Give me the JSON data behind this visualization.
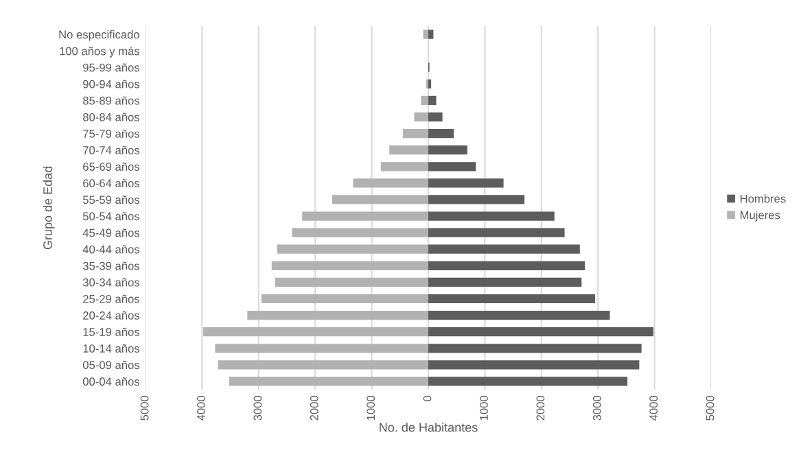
{
  "chart_data": {
    "type": "bar",
    "orientation": "horizontal",
    "stacked": true,
    "xlabel": "No. de Habitantes",
    "ylabel": "Grupo de Edad",
    "categories": [
      "No especificado",
      "100 años y más",
      "95-99 años",
      "90-94 años",
      "85-89 años",
      "80-84 años",
      "75-79 años",
      "70-74 años",
      "65-69 años",
      "60-64 años",
      "55-59 años",
      "50-54 años",
      "45-49 años",
      "40-44 años",
      "35-39 años",
      "30-34 años",
      "25-29 años",
      "20-24 años",
      "15-19 años",
      "10-14 años",
      "05-09 años",
      "00-04 años"
    ],
    "series": [
      {
        "name": "Hombres",
        "color": "#5d5d5d",
        "values": [
          90,
          0,
          20,
          50,
          140,
          250,
          450,
          690,
          840,
          1330,
          1700,
          2230,
          2410,
          2680,
          2770,
          2710,
          2950,
          3210,
          3980,
          3770,
          3730,
          3520
        ]
      },
      {
        "name": "Mujeres",
        "color": "#b2b2b2",
        "values": [
          -90,
          0,
          null,
          -40,
          -130,
          -250,
          -450,
          -690,
          -840,
          -1330,
          -1700,
          -2230,
          -2410,
          -2670,
          -2770,
          -2710,
          -2950,
          -3200,
          -3980,
          -3770,
          -3720,
          -3520
        ]
      }
    ],
    "xlim": [
      -5000,
      5000
    ],
    "xticks": [
      {
        "value": -5000,
        "label": "5000"
      },
      {
        "value": -4000,
        "label": "4000"
      },
      {
        "value": -3000,
        "label": "3000"
      },
      {
        "value": -2000,
        "label": "2000"
      },
      {
        "value": -1000,
        "label": "1000"
      },
      0,
      1000,
      2000,
      3000,
      4000,
      5000
    ],
    "grid": "x",
    "legend": "right"
  }
}
